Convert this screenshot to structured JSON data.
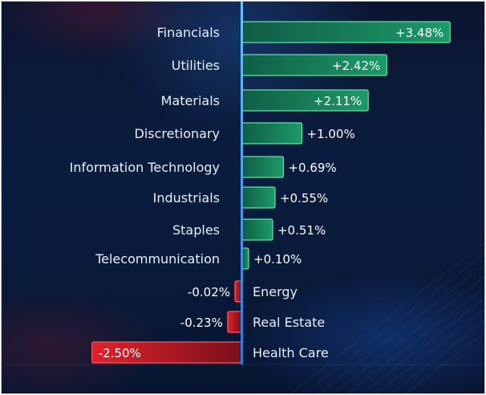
{
  "chart_data": {
    "type": "bar",
    "orientation": "horizontal",
    "categories": [
      "Financials",
      "Utilities",
      "Materials",
      "Discretionary",
      "Information Technology",
      "Industrials",
      "Staples",
      "Telecommunication",
      "Energy",
      "Real Estate",
      "Health Care"
    ],
    "values": [
      3.48,
      2.42,
      2.11,
      1.0,
      0.69,
      0.55,
      0.51,
      0.1,
      -0.02,
      -0.23,
      -2.5
    ],
    "value_labels": [
      "+3.48%",
      "+2.42%",
      "+2.11%",
      "+1.00%",
      "+0.69%",
      "+0.55%",
      "+0.51%",
      "+0.10%",
      "-0.02%",
      "-0.23%",
      "-2.50%"
    ],
    "title": "",
    "xlabel": "",
    "ylabel": "",
    "colors": {
      "positive": "#1f9a6a",
      "negative": "#d11f2a",
      "axis": "#3fa9ff"
    }
  }
}
